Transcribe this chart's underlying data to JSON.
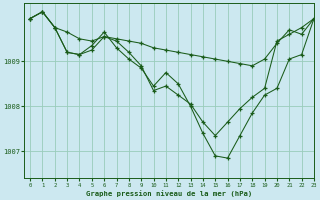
{
  "title": "Graphe pression niveau de la mer (hPa)",
  "background_color": "#cce8f0",
  "grid_color": "#99ccbb",
  "line_color": "#1a5c1a",
  "xlim": [
    -0.5,
    23
  ],
  "ylim": [
    1006.4,
    1010.3
  ],
  "yticks": [
    1007,
    1008,
    1009
  ],
  "xticks": [
    0,
    1,
    2,
    3,
    4,
    5,
    6,
    7,
    8,
    9,
    10,
    11,
    12,
    13,
    14,
    15,
    16,
    17,
    18,
    19,
    20,
    21,
    22,
    23
  ],
  "series": [
    [
      1009.95,
      1010.1,
      1009.75,
      1009.65,
      1009.5,
      1009.45,
      1009.55,
      1009.5,
      1009.45,
      1009.4,
      1009.3,
      1009.25,
      1009.2,
      1009.15,
      1009.1,
      1009.05,
      1009.0,
      1008.95,
      1008.9,
      1009.05,
      1009.4,
      1009.7,
      1009.6,
      1009.95
    ],
    [
      1009.95,
      1010.1,
      1009.75,
      1009.2,
      1009.15,
      1009.25,
      1009.55,
      1009.45,
      1009.2,
      1008.9,
      1008.35,
      1008.45,
      1008.25,
      1008.05,
      1007.65,
      1007.35,
      1007.65,
      1007.95,
      1008.2,
      1008.4,
      1009.45,
      1009.6,
      1009.75,
      1009.95
    ],
    [
      1009.95,
      1010.1,
      1009.75,
      1009.2,
      1009.15,
      1009.35,
      1009.65,
      1009.3,
      1009.05,
      1008.85,
      1008.45,
      1008.75,
      1008.5,
      1008.0,
      1007.4,
      1006.9,
      1006.85,
      1007.35,
      1007.85,
      1008.25,
      1008.4,
      1009.05,
      1009.15,
      1009.95
    ]
  ]
}
